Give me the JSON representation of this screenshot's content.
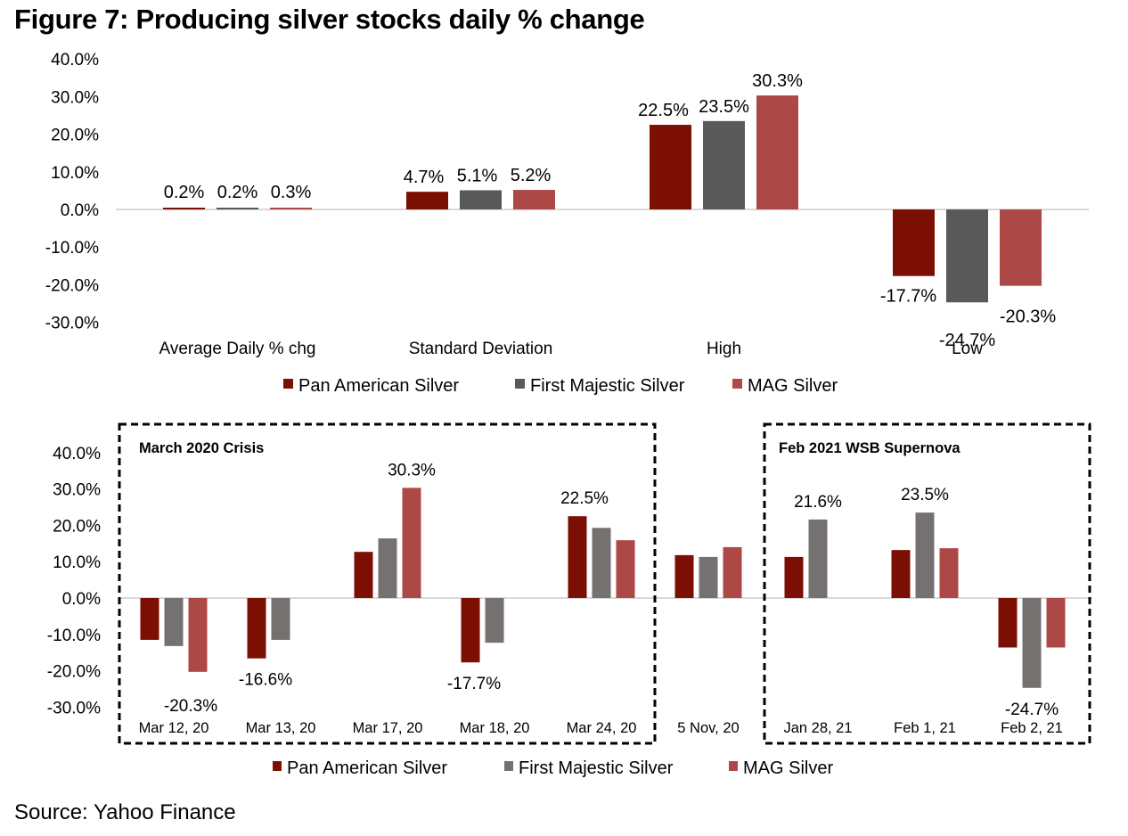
{
  "title": "Figure 7: Producing silver stocks daily % change",
  "source": "Source: Yahoo Finance",
  "chart_data": [
    {
      "type": "bar",
      "title": "Producing silver stocks daily % change (summary statistics)",
      "categories": [
        "Average Daily % chg",
        "Standard Deviation",
        "High",
        "Low"
      ],
      "series": [
        {
          "name": "Pan American Silver",
          "color": "#7B0F04",
          "values": [
            0.2,
            4.7,
            22.5,
            -17.7
          ],
          "labels": [
            "0.2%",
            "4.7%",
            "22.5%",
            "-17.7%"
          ]
        },
        {
          "name": "First Majestic Silver",
          "color": "#595959",
          "values": [
            0.2,
            5.1,
            23.5,
            -24.7
          ],
          "labels": [
            "0.2%",
            "5.1%",
            "23.5%",
            "-24.7%"
          ]
        },
        {
          "name": "MAG Silver",
          "color": "#AC4845",
          "values": [
            0.3,
            5.2,
            30.3,
            -20.3
          ],
          "labels": [
            "0.3%",
            "5.2%",
            "30.3%",
            "-20.3%"
          ]
        }
      ],
      "yticks": [
        "40.0%",
        "30.0%",
        "20.0%",
        "10.0%",
        "0.0%",
        "-10.0%",
        "-20.0%",
        "-30.0%"
      ],
      "ylim": [
        -30,
        40
      ],
      "xlabel": "",
      "ylabel": "",
      "grid": false,
      "legend": "bottom"
    },
    {
      "type": "bar",
      "title": "Producing silver stocks daily % change (selected days)",
      "categories": [
        "Mar 12, 20",
        "Mar 13, 20",
        "Mar 17, 20",
        "Mar 18, 20",
        "Mar 24, 20",
        "5 Nov, 20",
        "Jan 28, 21",
        "Feb 1, 21",
        "Feb 2, 21"
      ],
      "series": [
        {
          "name": "Pan American Silver",
          "color": "#7B0F04",
          "values": [
            -11.5,
            -16.6,
            12.7,
            -17.7,
            22.5,
            11.8,
            11.3,
            13.2,
            -13.6
          ],
          "labels": [
            "",
            "-16.6%",
            "",
            "-17.7%",
            "22.5%",
            "",
            "",
            "",
            ""
          ]
        },
        {
          "name": "First Majestic Silver",
          "color": "#767171",
          "values": [
            -13.2,
            -11.5,
            16.4,
            -12.3,
            19.3,
            11.3,
            21.6,
            23.5,
            -24.7
          ],
          "labels": [
            "",
            "",
            "",
            "",
            "",
            "",
            "21.6%",
            "23.5%",
            "-24.7%"
          ]
        },
        {
          "name": "MAG Silver",
          "color": "#AC4845",
          "values": [
            -20.3,
            null,
            30.3,
            null,
            15.9,
            14.0,
            null,
            13.7,
            -13.6
          ],
          "labels": [
            "-20.3%",
            "",
            "30.3%",
            "",
            "",
            "",
            "",
            "",
            ""
          ]
        }
      ],
      "yticks": [
        "40.0%",
        "30.0%",
        "20.0%",
        "10.0%",
        "0.0%",
        "-10.0%",
        "-20.0%",
        "-30.0%"
      ],
      "ylim": [
        -30,
        40
      ],
      "xlabel": "",
      "ylabel": "",
      "grid": false,
      "legend": "bottom",
      "annotations": [
        {
          "text": "March 2020 Crisis",
          "categories": [
            "Mar 12, 20",
            "Mar 13, 20",
            "Mar 17, 20",
            "Mar 18, 20",
            "Mar 24, 20"
          ],
          "style": "dashed box"
        },
        {
          "text": "Feb 2021 WSB Supernova",
          "categories": [
            "Jan 28, 21",
            "Feb 1, 21",
            "Feb 2, 21"
          ],
          "style": "dashed box"
        }
      ]
    }
  ]
}
